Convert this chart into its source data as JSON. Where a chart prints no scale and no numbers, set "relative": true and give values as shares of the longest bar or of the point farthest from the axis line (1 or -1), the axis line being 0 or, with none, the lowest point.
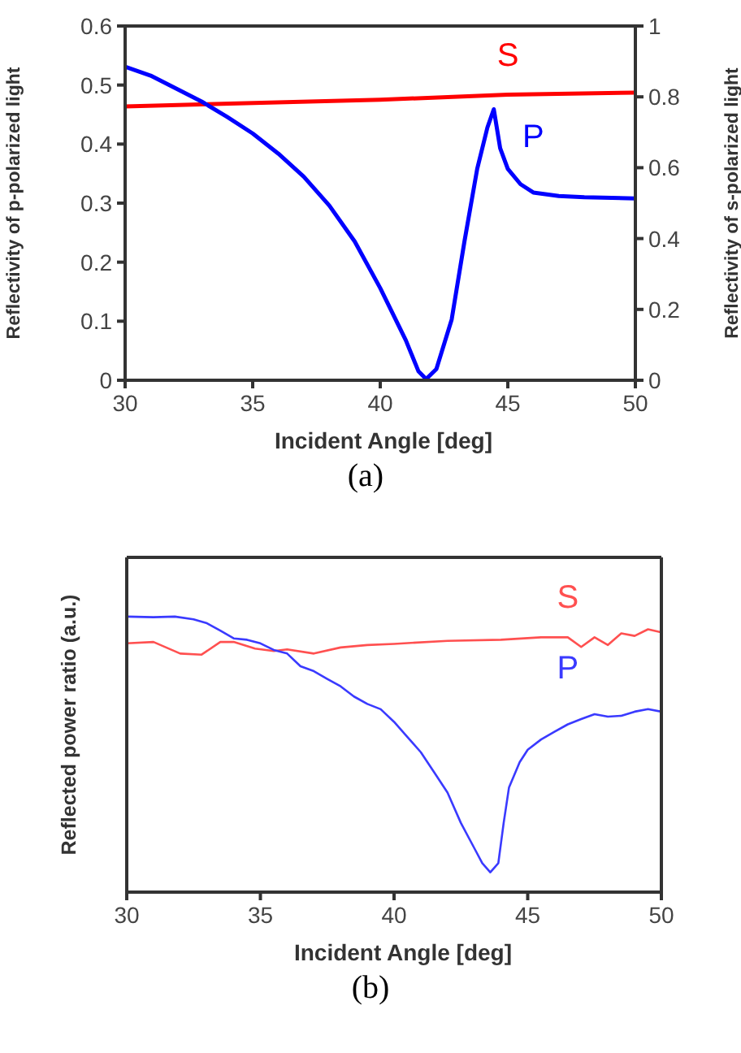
{
  "chart_data": [
    {
      "type": "line",
      "xlabel": "Incident Angle [deg]",
      "ylabel": "Reflectivity of p-polarized light",
      "y2label": "Reflectivity of s-polarized light",
      "xlim": [
        30,
        50
      ],
      "xticks": [
        30,
        35,
        40,
        45,
        50
      ],
      "ylim": [
        0,
        0.6
      ],
      "yticks": [
        0,
        0.1,
        0.2,
        0.3,
        0.4,
        0.5,
        0.6
      ],
      "y2lim": [
        0,
        1
      ],
      "y2ticks": [
        0,
        0.2,
        0.4,
        0.6,
        0.8,
        1
      ],
      "annotations": [
        "(a)"
      ],
      "series": [
        {
          "name": "S",
          "color": "#ff0000",
          "axis": "y2",
          "x": [
            30,
            40,
            45,
            50
          ],
          "values": [
            0.773,
            0.792,
            0.806,
            0.812
          ]
        },
        {
          "name": "P",
          "color": "#0000ff",
          "x": [
            30,
            31,
            32,
            33,
            34,
            35,
            36,
            37,
            38,
            39,
            40,
            41,
            41.5,
            41.8,
            42.2,
            42.8,
            43.3,
            43.8,
            44.2,
            44.45,
            44.7,
            45,
            45.5,
            46,
            47,
            48,
            50
          ],
          "values": [
            0.531,
            0.516,
            0.494,
            0.472,
            0.446,
            0.418,
            0.384,
            0.345,
            0.296,
            0.235,
            0.156,
            0.068,
            0.015,
            0.002,
            0.019,
            0.103,
            0.235,
            0.358,
            0.428,
            0.459,
            0.393,
            0.358,
            0.332,
            0.318,
            0.312,
            0.31,
            0.308
          ]
        }
      ]
    },
    {
      "type": "line",
      "relative": true,
      "tick_labels": "x",
      "xlabel": "Incident Angle [deg]",
      "ylabel": "Reflected power ratio (a.u.)",
      "xlim": [
        30,
        50
      ],
      "xticks": [
        30,
        35,
        40,
        45,
        50
      ],
      "annotations": [
        "(b)"
      ],
      "series": [
        {
          "name": "S",
          "color": "#ff5050",
          "x": [
            30,
            31,
            32,
            32.8,
            33.5,
            34,
            34.8,
            35.5,
            36,
            37,
            38,
            39,
            40,
            42,
            44,
            45.5,
            46.5,
            47,
            47.5,
            48,
            48.5,
            49,
            49.5,
            50
          ],
          "values": [
            0.903,
            0.908,
            0.866,
            0.862,
            0.908,
            0.908,
            0.884,
            0.875,
            0.881,
            0.866,
            0.888,
            0.897,
            0.901,
            0.912,
            0.916,
            0.925,
            0.925,
            0.89,
            0.925,
            0.897,
            0.939,
            0.93,
            0.954,
            0.943
          ]
        },
        {
          "name": "P",
          "color": "#3a3aff",
          "x": [
            30,
            31,
            31.8,
            32.5,
            33,
            33.5,
            34,
            34.5,
            35,
            35.5,
            36,
            36.5,
            37,
            37.5,
            38,
            38.5,
            39,
            39.5,
            40,
            40.5,
            41,
            41.5,
            42,
            42.5,
            43,
            43.3,
            43.6,
            43.9,
            44.1,
            44.3,
            44.7,
            45,
            45.5,
            46,
            46.5,
            47,
            47.5,
            48,
            48.5,
            49,
            49.5,
            50
          ],
          "values": [
            1,
            0.998,
            1,
            0.99,
            0.976,
            0.949,
            0.921,
            0.916,
            0.903,
            0.879,
            0.866,
            0.82,
            0.802,
            0.774,
            0.747,
            0.71,
            0.683,
            0.664,
            0.618,
            0.563,
            0.508,
            0.435,
            0.361,
            0.251,
            0.16,
            0.105,
            0.072,
            0.105,
            0.251,
            0.38,
            0.472,
            0.517,
            0.554,
            0.582,
            0.609,
            0.628,
            0.646,
            0.637,
            0.64,
            0.655,
            0.664,
            0.655
          ]
        }
      ]
    }
  ]
}
